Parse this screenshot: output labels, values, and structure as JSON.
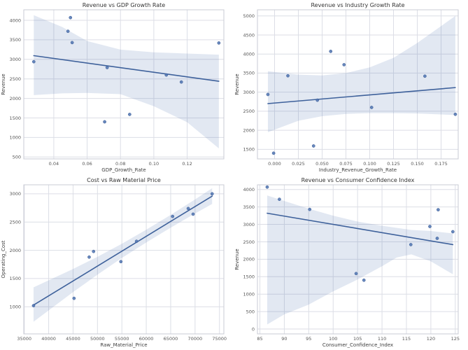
{
  "figure": {
    "kind": "scatter-regression-grid",
    "rows": 2,
    "cols": 2,
    "background": "#ffffff"
  },
  "style": {
    "background": "#ffffff",
    "accent": "#4c72b0",
    "line": "#3e619b",
    "point_edge": "#3b5c96",
    "point_opacity": 0.85,
    "band_opacity": 0.16,
    "grid": "#dcdee6",
    "frame": "#c9cbd4",
    "tick_text": "#555555",
    "label_text": "#3f3f3f",
    "title_text": "#333333"
  },
  "chart_data": [
    {
      "type": "scatter",
      "title": "Revenue vs GDP Growth Rate",
      "xlabel": "GDP_Growth_Rate",
      "ylabel": "Revenue",
      "grid": true,
      "legend": false,
      "xlim": [
        0.022,
        0.142
      ],
      "ylim": [
        450,
        4270
      ],
      "xticks": [
        0.04,
        0.06,
        0.08,
        0.1,
        0.12
      ],
      "xtick_labels": [
        "0.04",
        "0.06",
        "0.08",
        "0.10",
        "0.12"
      ],
      "yticks": [
        500,
        1000,
        1500,
        2000,
        2500,
        3000,
        3500,
        4000
      ],
      "ytick_labels": [
        "500",
        "1000",
        "1500",
        "2000",
        "2500",
        "3000",
        "3500",
        "4000"
      ],
      "points": [
        [
          0.028,
          2940
        ],
        [
          0.0485,
          3720
        ],
        [
          0.05,
          4070
        ],
        [
          0.051,
          3430
        ],
        [
          0.0705,
          1400
        ],
        [
          0.072,
          2790
        ],
        [
          0.0855,
          1590
        ],
        [
          0.1075,
          2600
        ],
        [
          0.1165,
          2420
        ],
        [
          0.139,
          3420
        ]
      ],
      "regression_line": [
        [
          0.028,
          3095
        ],
        [
          0.139,
          2440
        ]
      ],
      "confidence_band": [
        [
          0.028,
          2085,
          4130
        ],
        [
          0.045,
          2130,
          3830
        ],
        [
          0.06,
          2140,
          3470
        ],
        [
          0.08,
          2110,
          3250
        ],
        [
          0.1,
          1800,
          3180
        ],
        [
          0.12,
          1390,
          3150
        ],
        [
          0.139,
          720,
          3120
        ]
      ]
    },
    {
      "type": "scatter",
      "title": "Revenue vs Industry Growth Rate",
      "xlabel": "Industry_Revenue_Growth_Rate",
      "ylabel": "Revenue",
      "grid": true,
      "legend": false,
      "xlim": [
        -0.018,
        0.193
      ],
      "ylim": [
        1250,
        5160
      ],
      "xticks": [
        0,
        0.025,
        0.05,
        0.075,
        0.1,
        0.125,
        0.15,
        0.175
      ],
      "xtick_labels": [
        "0.000",
        "0.025",
        "0.050",
        "0.075",
        "0.100",
        "0.125",
        "0.150",
        "0.175"
      ],
      "yticks": [
        1500,
        2000,
        2500,
        3000,
        3500,
        4000,
        4500,
        5000
      ],
      "ytick_labels": [
        "1500",
        "2000",
        "2500",
        "3000",
        "3500",
        "4000",
        "4500",
        "5000"
      ],
      "points": [
        [
          -0.007,
          2940
        ],
        [
          -0.001,
          1400
        ],
        [
          0.014,
          3430
        ],
        [
          0.041,
          1590
        ],
        [
          0.045,
          2790
        ],
        [
          0.059,
          4070
        ],
        [
          0.073,
          3720
        ],
        [
          0.102,
          2600
        ],
        [
          0.158,
          3420
        ],
        [
          0.19,
          2420
        ]
      ],
      "regression_line": [
        [
          -0.007,
          2700
        ],
        [
          0.19,
          3120
        ]
      ],
      "confidence_band": [
        [
          -0.007,
          1950,
          3550
        ],
        [
          0.025,
          2250,
          3460
        ],
        [
          0.05,
          2370,
          3440
        ],
        [
          0.075,
          2430,
          3500
        ],
        [
          0.1,
          2450,
          3650
        ],
        [
          0.125,
          2450,
          3900
        ],
        [
          0.15,
          2440,
          4290
        ],
        [
          0.19,
          2400,
          5000
        ]
      ]
    },
    {
      "type": "scatter",
      "title": "Cost vs Raw Material Price",
      "xlabel": "Raw_Material_Price",
      "ylabel": "Operating_Cost",
      "grid": true,
      "legend": false,
      "xlim": [
        34900,
        75900
      ],
      "ylim": [
        520,
        3160
      ],
      "xticks": [
        35000,
        40000,
        45000,
        50000,
        55000,
        60000,
        65000,
        70000,
        75000
      ],
      "xtick_labels": [
        "35000",
        "40000",
        "45000",
        "50000",
        "55000",
        "60000",
        "65000",
        "70000",
        "75000"
      ],
      "yticks": [
        1000,
        1500,
        2000,
        2500,
        3000
      ],
      "ytick_labels": [
        "1000",
        "1500",
        "2000",
        "2500",
        "3000"
      ],
      "points": [
        [
          36900,
          1020
        ],
        [
          45200,
          1150
        ],
        [
          48300,
          1880
        ],
        [
          49200,
          1980
        ],
        [
          54800,
          1800
        ],
        [
          58000,
          2160
        ],
        [
          65400,
          2600
        ],
        [
          68600,
          2740
        ],
        [
          69600,
          2640
        ],
        [
          73500,
          3000
        ]
      ],
      "regression_line": [
        [
          36900,
          1030
        ],
        [
          73500,
          2960
        ]
      ],
      "confidence_band": [
        [
          36900,
          735,
          1345
        ],
        [
          45000,
          1260,
          1670
        ],
        [
          50000,
          1569,
          1885
        ],
        [
          55000,
          1865,
          2115
        ],
        [
          60000,
          2139,
          2365
        ],
        [
          65000,
          2401,
          2627
        ],
        [
          70000,
          2652,
          2902
        ],
        [
          73500,
          2820,
          3100
        ]
      ]
    },
    {
      "type": "scatter",
      "title": "Revenue vs Consumer Confidence Index",
      "xlabel": "Consumer_Confidence_Index",
      "ylabel": "Revenue",
      "grid": true,
      "legend": false,
      "xlim": [
        84.5,
        125.6
      ],
      "ylim": [
        -140,
        4135
      ],
      "xticks": [
        85,
        90,
        95,
        100,
        105,
        110,
        115,
        120,
        125
      ],
      "xtick_labels": [
        "85",
        "90",
        "95",
        "100",
        "105",
        "110",
        "115",
        "120",
        "125"
      ],
      "yticks": [
        0,
        500,
        1000,
        1500,
        2000,
        2500,
        3000,
        3500,
        4000
      ],
      "ytick_labels": [
        "0",
        "500",
        "1000",
        "1500",
        "2000",
        "2500",
        "3000",
        "3500",
        "4000"
      ],
      "points": [
        [
          86.5,
          4070
        ],
        [
          89,
          3720
        ],
        [
          95.2,
          3430
        ],
        [
          104.7,
          1590
        ],
        [
          106.3,
          1400
        ],
        [
          115.9,
          2420
        ],
        [
          119.8,
          2940
        ],
        [
          121.3,
          2600
        ],
        [
          121.5,
          3420
        ],
        [
          124.5,
          2790
        ]
      ],
      "regression_line": [
        [
          86.5,
          3320
        ],
        [
          124.5,
          2420
        ]
      ],
      "confidence_band": [
        [
          86.5,
          130,
          3830
        ],
        [
          90,
          420,
          3670
        ],
        [
          95,
          700,
          3450
        ],
        [
          100,
          1080,
          3250
        ],
        [
          105,
          1420,
          3080
        ],
        [
          110,
          1800,
          2960
        ],
        [
          113,
          2050,
          2900
        ],
        [
          116,
          2140,
          2840
        ],
        [
          120,
          1940,
          2810
        ],
        [
          124.5,
          1570,
          2740
        ]
      ]
    }
  ]
}
